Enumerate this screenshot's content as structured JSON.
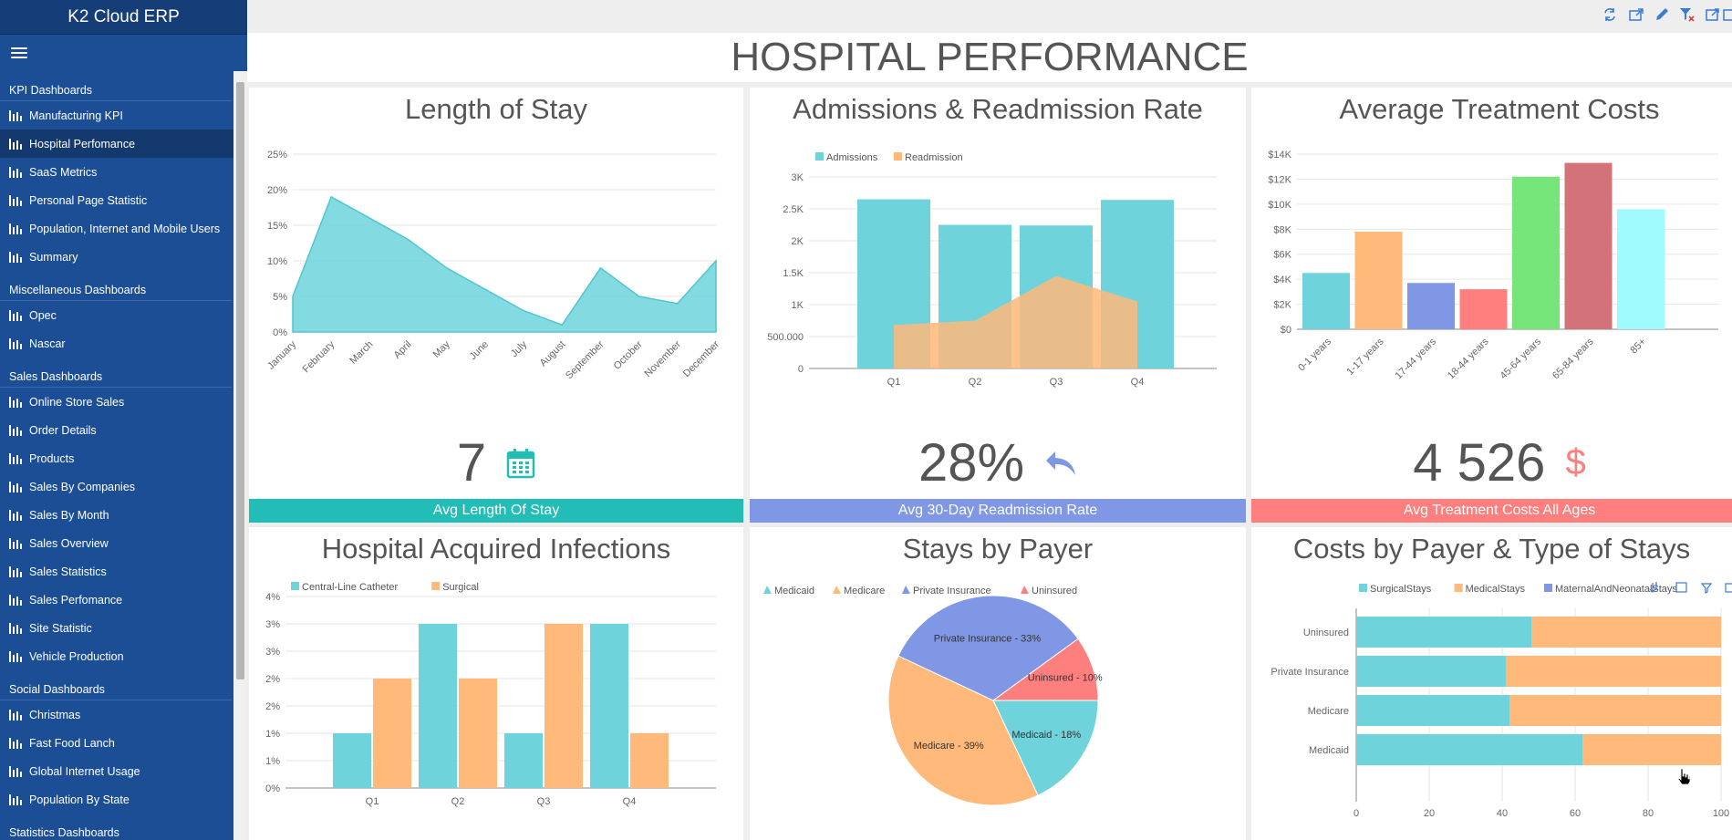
{
  "app": {
    "title": "K2 Cloud ERP"
  },
  "page": {
    "title": "HOSPITAL PERFORMANCE"
  },
  "sidebar": {
    "groups": [
      {
        "title": "KPI Dashboards",
        "items": [
          {
            "label": "Manufacturing KPI"
          },
          {
            "label": "Hospital Perfomance",
            "active": true
          },
          {
            "label": "SaaS Metrics"
          },
          {
            "label": "Personal Page Statistic"
          },
          {
            "label": "Population, Internet and Mobile Users"
          },
          {
            "label": "Summary"
          }
        ]
      },
      {
        "title": "Miscellaneous Dashboards",
        "items": [
          {
            "label": "Opec"
          },
          {
            "label": "Nascar"
          }
        ]
      },
      {
        "title": "Sales Dashboards",
        "items": [
          {
            "label": "Online Store Sales"
          },
          {
            "label": "Order Details"
          },
          {
            "label": "Products"
          },
          {
            "label": "Sales By Companies"
          },
          {
            "label": "Sales By Month"
          },
          {
            "label": "Sales Overview"
          },
          {
            "label": "Sales Statistics"
          },
          {
            "label": "Sales Perfomance"
          },
          {
            "label": "Site Statistic"
          },
          {
            "label": "Vehicle Production"
          }
        ]
      },
      {
        "title": "Social Dashboards",
        "items": [
          {
            "label": "Christmas"
          },
          {
            "label": "Fast Food Lanch"
          },
          {
            "label": "Global Internet Usage"
          },
          {
            "label": "Population By State"
          }
        ]
      },
      {
        "title": "Statistics Dashboards",
        "items": []
      }
    ]
  },
  "toolbar": {
    "icons": [
      "refresh-icon",
      "export-icon",
      "edit-icon",
      "clear-filter-icon",
      "fullscreen-icon",
      "more-icon"
    ]
  },
  "colors": {
    "teal": "#6fd3dc",
    "orange": "#ffb97a",
    "blue": "#7f97e4",
    "red": "#ff7f7f",
    "green": "#76e67a",
    "maroon": "#d4727a",
    "cyan": "#9ffbff"
  },
  "panels": {
    "los": {
      "title": "Length of Stay",
      "kpi_value": "7",
      "kpi_label": "Avg Length Of Stay",
      "kpi_icon": "calendar-icon",
      "bar_color": "#22bdb6"
    },
    "adm": {
      "title": "Admissions & Readmission Rate",
      "kpi_value": "28%",
      "kpi_label": "Avg 30-Day Readmission Rate",
      "kpi_icon": "reply-all-icon",
      "bar_color": "#7f97e4"
    },
    "cost": {
      "title": "Average Treatment Costs",
      "kpi_value": "4 526",
      "kpi_label": "Avg Treatment Costs All Ages",
      "kpi_icon": "dollar-icon",
      "bar_color": "#ff7f7f"
    },
    "hai": {
      "title": "Hospital Acquired Infections"
    },
    "payer": {
      "title": "Stays by Payer"
    },
    "cbp": {
      "title": "Costs by Payer & Type of Stays"
    }
  },
  "chart_data": [
    {
      "id": "los",
      "type": "area",
      "x": [
        "January",
        "February",
        "March",
        "April",
        "May",
        "June",
        "July",
        "August",
        "September",
        "October",
        "November",
        "December"
      ],
      "values": [
        5,
        19,
        16,
        13,
        9,
        6,
        3,
        1,
        9,
        5,
        4,
        10
      ],
      "yticks": [
        "0%",
        "5%",
        "10%",
        "15%",
        "20%",
        "25%"
      ],
      "ylim": [
        0,
        25
      ]
    },
    {
      "id": "adm",
      "type": "bar",
      "categories": [
        "Q1",
        "Q2",
        "Q3",
        "Q4"
      ],
      "series": [
        {
          "name": "Admissions",
          "type": "bar",
          "values": [
            2650,
            2250,
            2240,
            2640
          ]
        },
        {
          "name": "Readmission",
          "type": "area",
          "values": [
            680,
            750,
            1450,
            1050
          ]
        }
      ],
      "yticks": [
        "0",
        "500.000",
        "1K",
        "1.5K",
        "2K",
        "2.5K",
        "3K"
      ],
      "ylim": [
        0,
        3000
      ]
    },
    {
      "id": "cost",
      "type": "bar",
      "categories": [
        "0-1 years",
        "1-17 years",
        "17-44 years",
        "18-44 years",
        "45-64 years",
        "65-84 years",
        "85+"
      ],
      "values": [
        4500,
        7800,
        3700,
        3200,
        12200,
        13300,
        9600
      ],
      "yticks": [
        "$0",
        "$2K",
        "$4K",
        "$6K",
        "$8K",
        "$10K",
        "$12K",
        "$14K"
      ],
      "ylim": [
        0,
        14000
      ]
    },
    {
      "id": "hai",
      "type": "bar",
      "categories": [
        "Q1",
        "Q2",
        "Q3",
        "Q4"
      ],
      "series": [
        {
          "name": "Central-Line Catheter",
          "values": [
            1,
            3,
            1,
            3
          ]
        },
        {
          "name": "Surgical",
          "values": [
            2,
            2,
            3,
            1
          ]
        }
      ],
      "yticks": [
        "0%",
        "1%",
        "1%",
        "2%",
        "2%",
        "3%",
        "3%",
        "4%"
      ],
      "ylim": [
        0,
        3.5
      ]
    },
    {
      "id": "payer",
      "type": "pie",
      "slices": [
        {
          "name": "Medicaid",
          "value": 18,
          "label": "Medicaid - 18%"
        },
        {
          "name": "Medicare",
          "value": 39,
          "label": "Medicare - 39%"
        },
        {
          "name": "Private Insurance",
          "value": 33,
          "label": "Private Insurance - 33%"
        },
        {
          "name": "Uninsured",
          "value": 10,
          "label": "Uninsured - 10%"
        }
      ]
    },
    {
      "id": "cbp",
      "type": "bar",
      "orientation": "horizontal",
      "stacked": "percent",
      "categories": [
        "Uninsured",
        "Private Insurance",
        "Medicare",
        "Medicaid"
      ],
      "series": [
        {
          "name": "SurgicalStays",
          "values": [
            48,
            41,
            42,
            62
          ]
        },
        {
          "name": "MedicalStays",
          "values": [
            52,
            59,
            58,
            38
          ]
        },
        {
          "name": "MaternalAndNeonatalStays",
          "values": [
            0,
            0,
            0,
            0
          ]
        }
      ],
      "xticks": [
        "0",
        "20",
        "40",
        "60",
        "80",
        "100"
      ],
      "xlim": [
        0,
        100
      ]
    }
  ]
}
